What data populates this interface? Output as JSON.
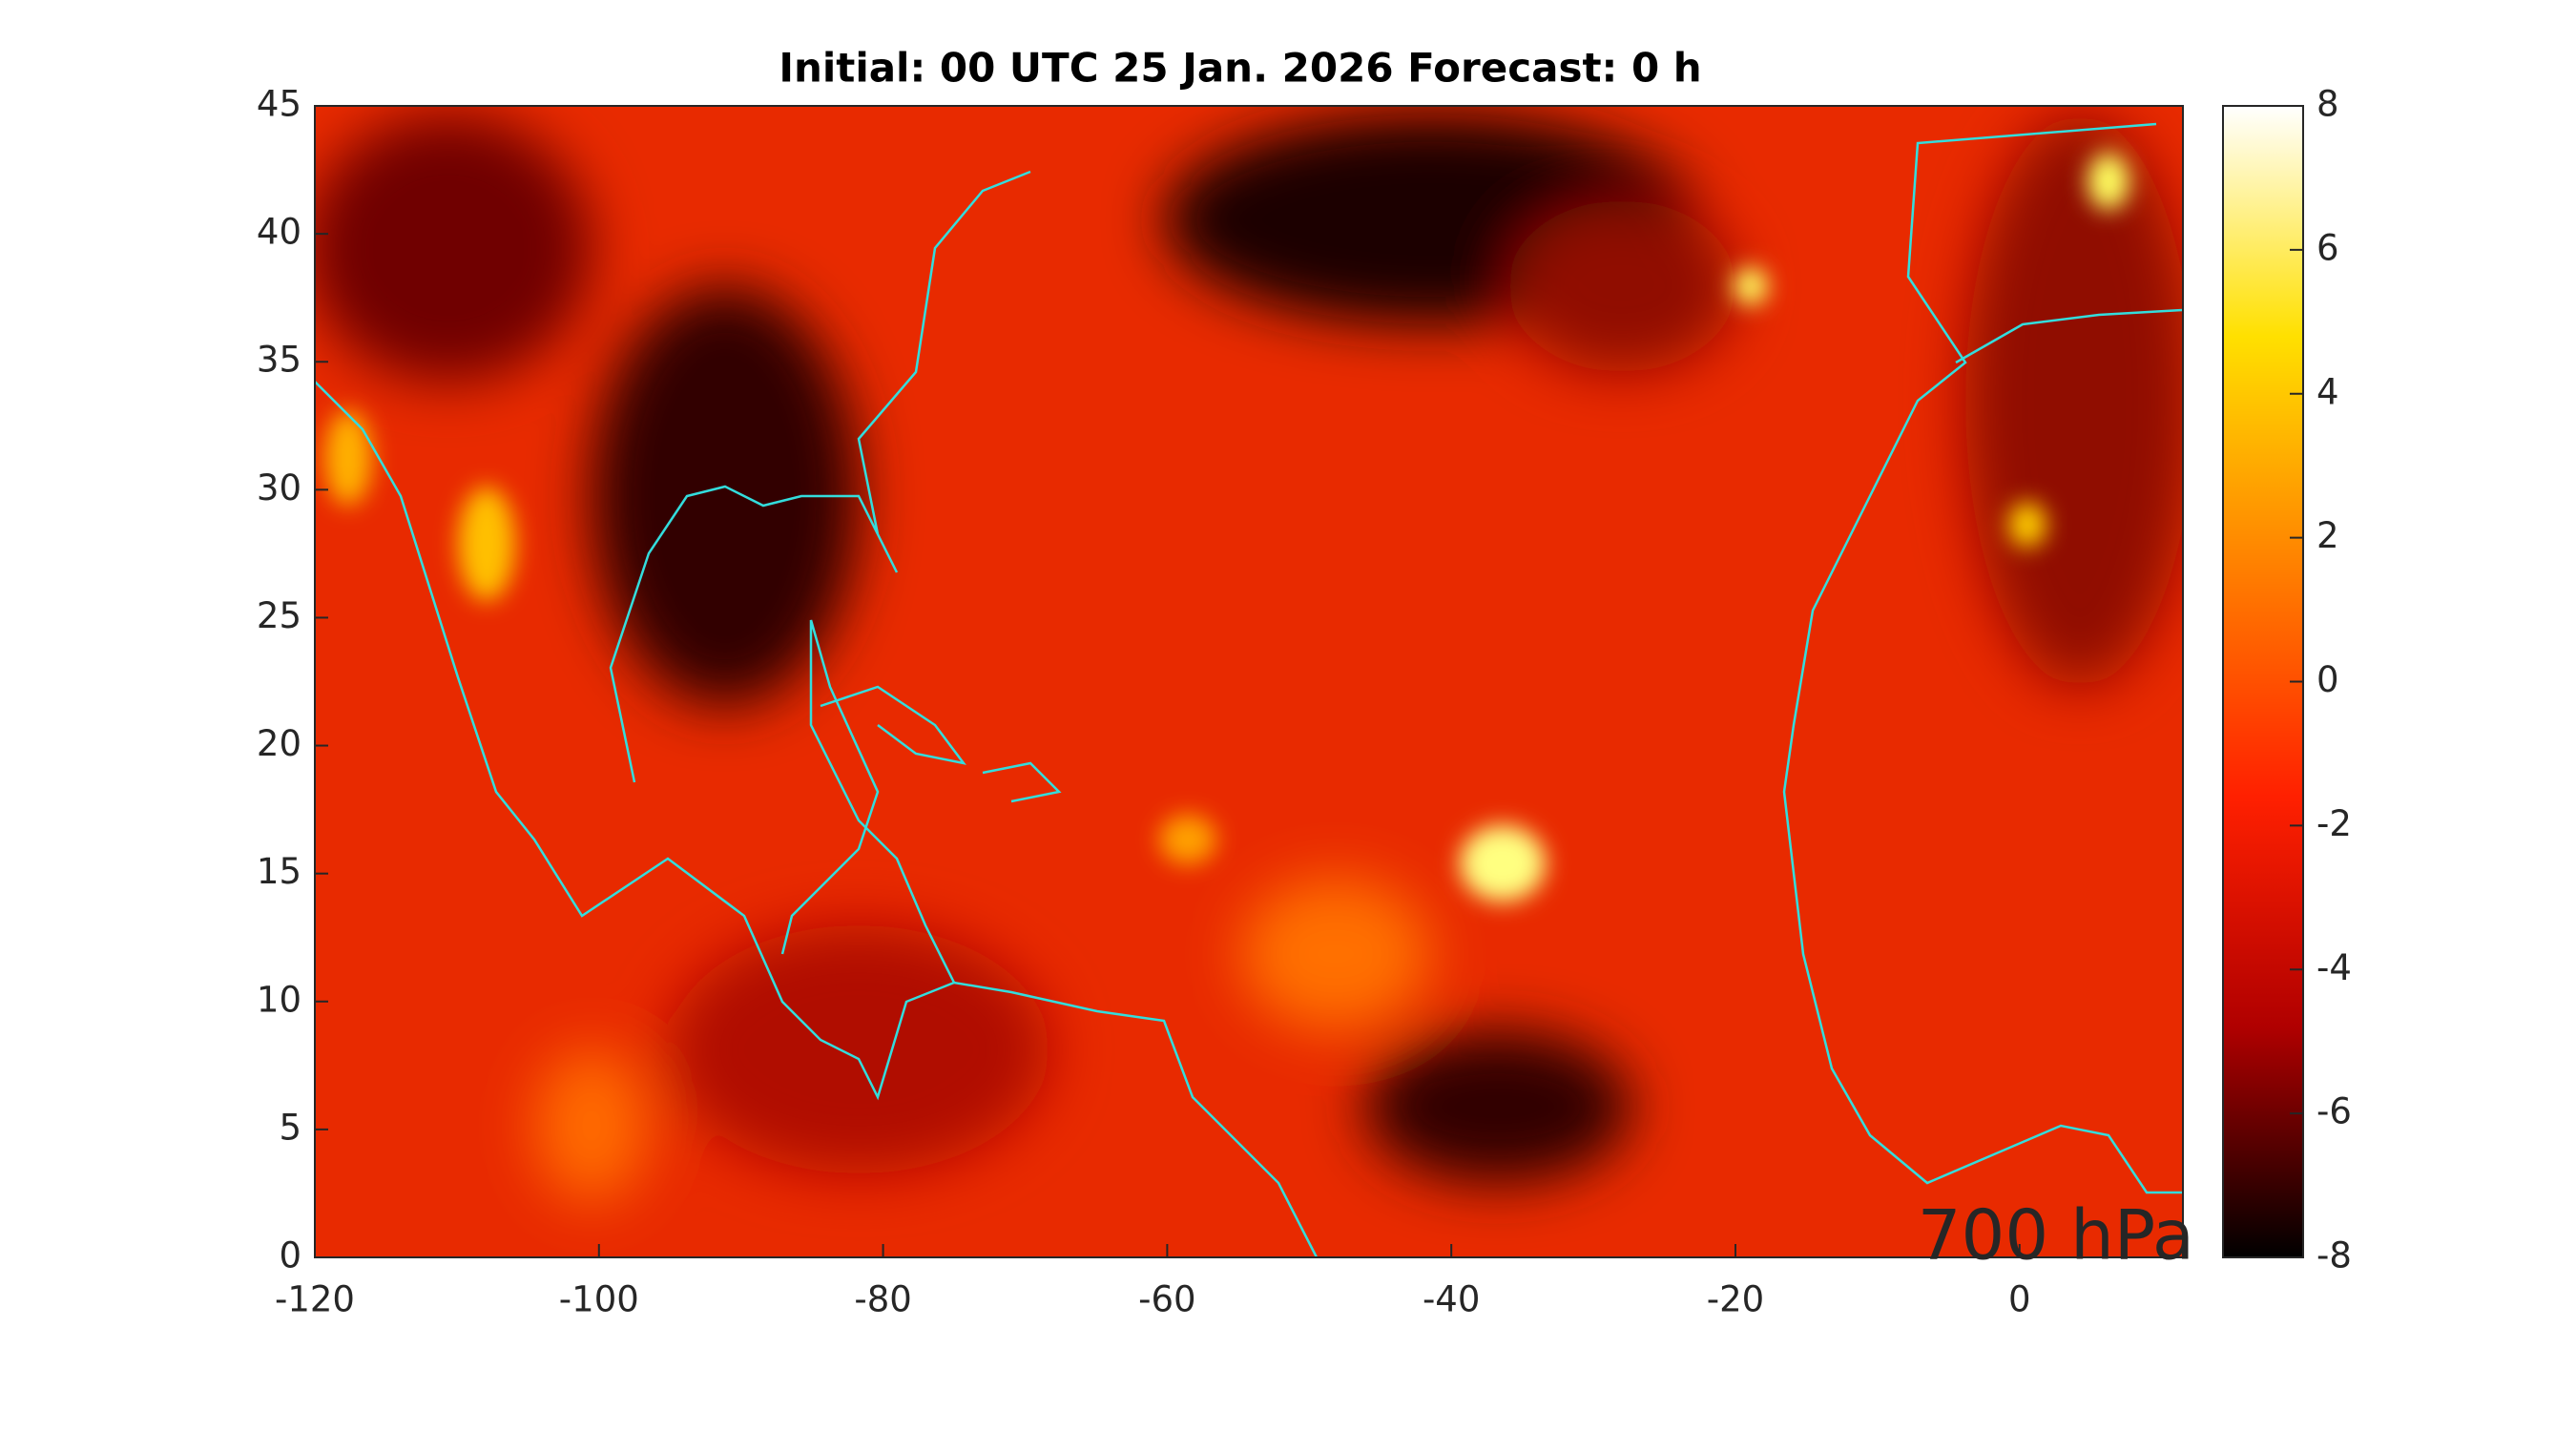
{
  "chart_data": {
    "type": "heatmap",
    "title": "Initial: 00 UTC 25 Jan. 2026 Forecast: 0 h",
    "annotation": "700 hPa",
    "annotation_color": "#00ff00",
    "xlim": [
      -120,
      11.5
    ],
    "ylim": [
      0,
      45
    ],
    "xticks": [
      -120,
      -100,
      -80,
      -60,
      -40,
      -20,
      0
    ],
    "yticks": [
      0,
      5,
      10,
      15,
      20,
      25,
      30,
      35,
      40,
      45
    ],
    "colorbar": {
      "clim": [
        -8,
        8
      ],
      "ticks": [
        -8,
        -6,
        -4,
        -2,
        0,
        2,
        4,
        6,
        8
      ],
      "colormap": [
        "#000000",
        "#b00000",
        "#ff2000",
        "#ff8000",
        "#ffe000",
        "#ffffff"
      ]
    },
    "coastline_color": "#33dddd"
  }
}
